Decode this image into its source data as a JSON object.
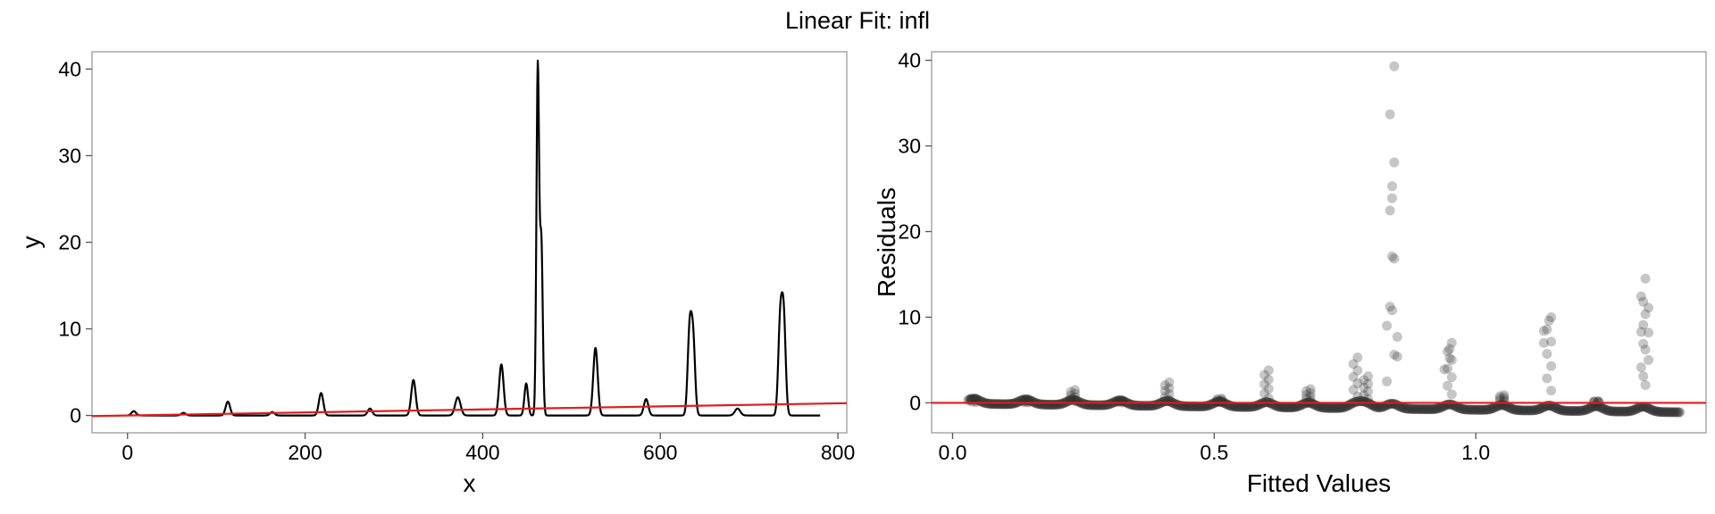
{
  "figure": {
    "title": "Linear Fit: infl"
  },
  "colors": {
    "fit_line": "#e41a1c",
    "data_line": "#000000",
    "points": "#333333",
    "frame": "#9a9a9a"
  },
  "chart_data": [
    {
      "type": "line",
      "xlabel": "x",
      "ylabel": "y",
      "xlim": [
        -40,
        810
      ],
      "ylim": [
        -2,
        42
      ],
      "xticks": [
        0,
        200,
        400,
        600,
        800
      ],
      "yticks": [
        0,
        10,
        20,
        30,
        40
      ],
      "grid": false,
      "series": [
        {
          "role": "data",
          "peaks": [
            {
              "x": 7,
              "y": 0.5,
              "w": 2.5
            },
            {
              "x": 63,
              "y": 0.3,
              "w": 2.5
            },
            {
              "x": 113,
              "y": 1.6,
              "w": 2.5
            },
            {
              "x": 163,
              "y": 0.4,
              "w": 2.5
            },
            {
              "x": 218,
              "y": 2.6,
              "w": 2.5
            },
            {
              "x": 273,
              "y": 0.8,
              "w": 2.5
            },
            {
              "x": 322,
              "y": 4.1,
              "w": 2.5
            },
            {
              "x": 372,
              "y": 2.1,
              "w": 3
            },
            {
              "x": 421,
              "y": 5.9,
              "w": 2.5
            },
            {
              "x": 449,
              "y": 3.7,
              "w": 2
            },
            {
              "x": 462,
              "y": 40.1,
              "w": 1.5
            },
            {
              "x": 466,
              "y": 20,
              "w": 1.6
            },
            {
              "x": 527,
              "y": 7.8,
              "w": 2.5
            },
            {
              "x": 584,
              "y": 1.9,
              "w": 2.5
            },
            {
              "x": 633,
              "y": 9.6,
              "w": 2.2
            },
            {
              "x": 637,
              "y": 8.5,
              "w": 2.2
            },
            {
              "x": 687,
              "y": 0.8,
              "w": 3
            },
            {
              "x": 735,
              "y": 10.5,
              "w": 2.2
            },
            {
              "x": 739,
              "y": 11,
              "w": 2.2
            }
          ],
          "x_range": [
            0,
            780
          ]
        },
        {
          "role": "linear-fit",
          "x": [
            -40,
            810
          ],
          "y": [
            -0.07,
            1.42
          ]
        }
      ]
    },
    {
      "type": "scatter",
      "xlabel": "Fitted Values",
      "ylabel": "Residuals",
      "xlim": [
        -0.04,
        1.44
      ],
      "ylim": [
        -3.5,
        41
      ],
      "xticks": [
        0.0,
        0.5,
        1.0
      ],
      "xticklabels": [
        "0.0",
        "0.5",
        "1.0"
      ],
      "yticks": [
        0,
        10,
        20,
        30,
        40
      ],
      "grid": false,
      "reference_line_y": 0,
      "fitted_range": [
        0.03,
        1.39
      ],
      "residual_peaks": [
        {
          "fitted": 0.04,
          "residual": 0.5
        },
        {
          "fitted": 0.14,
          "residual": 0.3
        },
        {
          "fitted": 0.23,
          "residual": 1.5
        },
        {
          "fitted": 0.32,
          "residual": 0.3
        },
        {
          "fitted": 0.41,
          "residual": 2.4
        },
        {
          "fitted": 0.51,
          "residual": 0.5
        },
        {
          "fitted": 0.6,
          "residual": 3.8
        },
        {
          "fitted": 0.68,
          "residual": 1.6
        },
        {
          "fitted": 0.77,
          "residual": 5.3
        },
        {
          "fitted": 0.79,
          "residual": 3.1
        },
        {
          "fitted": 0.84,
          "residual": 39.3
        },
        {
          "fitted": 0.95,
          "residual": 7.0
        },
        {
          "fitted": 1.05,
          "residual": 0.9
        },
        {
          "fitted": 1.14,
          "residual": 10.0
        },
        {
          "fitted": 1.23,
          "residual": 0.2
        },
        {
          "fitted": 1.32,
          "residual": 14.5
        }
      ],
      "extra_points": [
        {
          "fitted": 0.84,
          "residual": 25.3
        },
        {
          "fitted": 0.84,
          "residual": 23.9
        },
        {
          "fitted": 0.84,
          "residual": 17.1
        },
        {
          "fitted": 0.84,
          "residual": 10.8
        },
        {
          "fitted": 0.83,
          "residual": 9.0
        },
        {
          "fitted": 0.85,
          "residual": 7.7
        },
        {
          "fitted": 0.85,
          "residual": 5.4
        },
        {
          "fitted": 0.83,
          "residual": 2.5
        },
        {
          "fitted": 1.14,
          "residual": 9.6
        },
        {
          "fitted": 1.13,
          "residual": 8.4
        },
        {
          "fitted": 1.13,
          "residual": 7.0
        },
        {
          "fitted": 1.32,
          "residual": 11.8
        },
        {
          "fitted": 1.33,
          "residual": 11.1
        },
        {
          "fitted": 1.32,
          "residual": 9.1
        },
        {
          "fitted": 1.33,
          "residual": 8.2
        },
        {
          "fitted": 1.32,
          "residual": 6.9
        },
        {
          "fitted": 1.33,
          "residual": 5.0
        },
        {
          "fitted": 1.32,
          "residual": 3.1
        },
        {
          "fitted": 0.95,
          "residual": 6.3
        },
        {
          "fitted": 0.95,
          "residual": 5.2
        },
        {
          "fitted": 0.94,
          "residual": 3.9
        }
      ]
    }
  ]
}
